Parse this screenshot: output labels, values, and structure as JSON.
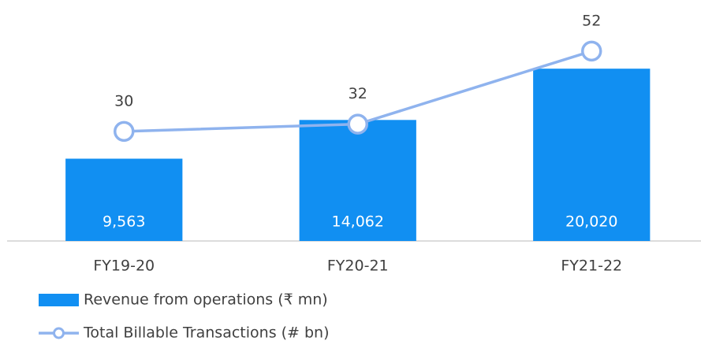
{
  "chart_data": {
    "type": "combo",
    "categories": [
      "FY19-20",
      "FY20-21",
      "FY21-22"
    ],
    "series": [
      {
        "name": "Revenue from operations (₹ mn)",
        "type": "bar",
        "color": "#118ff2",
        "values": [
          9563,
          14062,
          20020
        ],
        "value_labels": [
          "9,563",
          "14,062",
          "20,020"
        ]
      },
      {
        "name": "Total Billable Transactions (# bn)",
        "type": "line",
        "axis": "y2",
        "color": "#8fb3ee",
        "values": [
          30,
          32,
          52
        ]
      }
    ],
    "ylim": [
      0,
      28000
    ],
    "y2lim": [
      0,
      66
    ],
    "legend": "bottom-left"
  }
}
